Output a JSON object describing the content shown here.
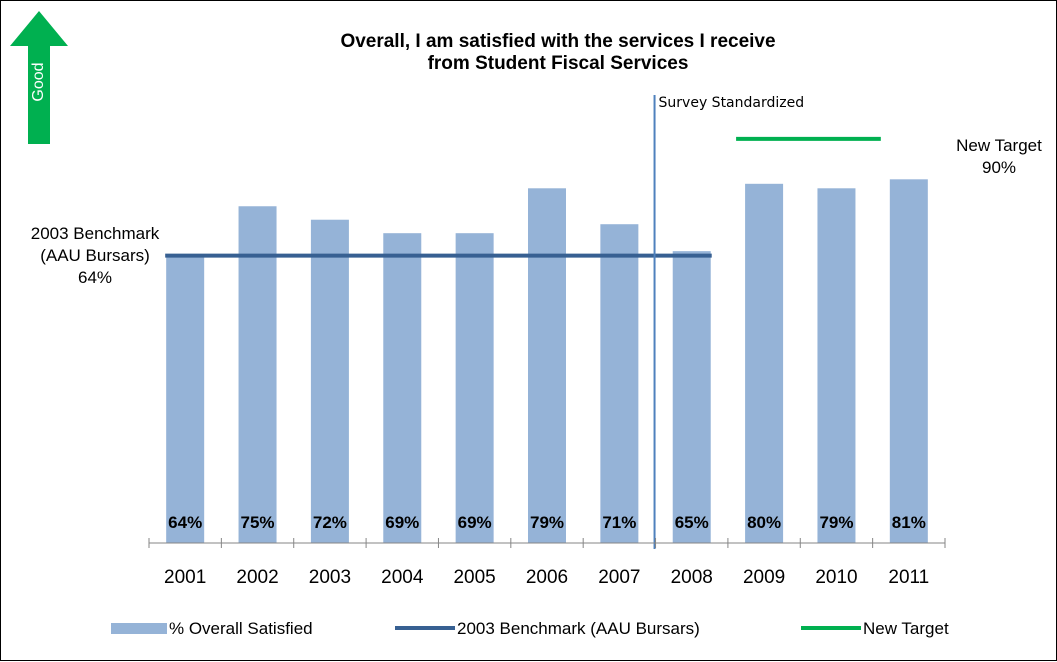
{
  "good_indicator": {
    "label": "Good",
    "color": "#00b050"
  },
  "chart_data": {
    "type": "bar",
    "title_lines": [
      "Overall, I am satisfied with the services I receive",
      "from Student Fiscal Services"
    ],
    "categories": [
      "2001",
      "2002",
      "2003",
      "2004",
      "2005",
      "2006",
      "2007",
      "2008",
      "2009",
      "2010",
      "2011"
    ],
    "series": [
      {
        "name": "% Overall Satisfied",
        "values": [
          64,
          75,
          72,
          69,
          69,
          79,
          71,
          65,
          80,
          79,
          81
        ],
        "color": "#95b3d7"
      }
    ],
    "data_labels": [
      "64%",
      "75%",
      "72%",
      "69%",
      "69%",
      "79%",
      "71%",
      "65%",
      "80%",
      "79%",
      "81%"
    ],
    "ylim": [
      0,
      100
    ],
    "grid": false,
    "benchmark": {
      "name": "2003 Benchmark (AAU Bursars)",
      "value": 64,
      "from": "2001",
      "to": "2008",
      "color": "#376092",
      "annotation_lines": [
        "2003 Benchmark",
        "(AAU Bursars)",
        "64%"
      ]
    },
    "target": {
      "name": "New Target",
      "value": 90,
      "from": "2009",
      "to": "2011",
      "color": "#00b050",
      "annotation_lines": [
        "New Target",
        "90%"
      ]
    },
    "divider": {
      "after": "2007",
      "label": "Survey Standardized",
      "color": "#4f81bd"
    },
    "legend_position": "bottom",
    "legend": [
      {
        "label": "% Overall Satisfied",
        "kind": "bar",
        "color": "#95b3d7"
      },
      {
        "label": "2003 Benchmark (AAU Bursars)",
        "kind": "line",
        "color": "#376092"
      },
      {
        "label": "New Target",
        "kind": "line",
        "color": "#00b050"
      }
    ]
  }
}
